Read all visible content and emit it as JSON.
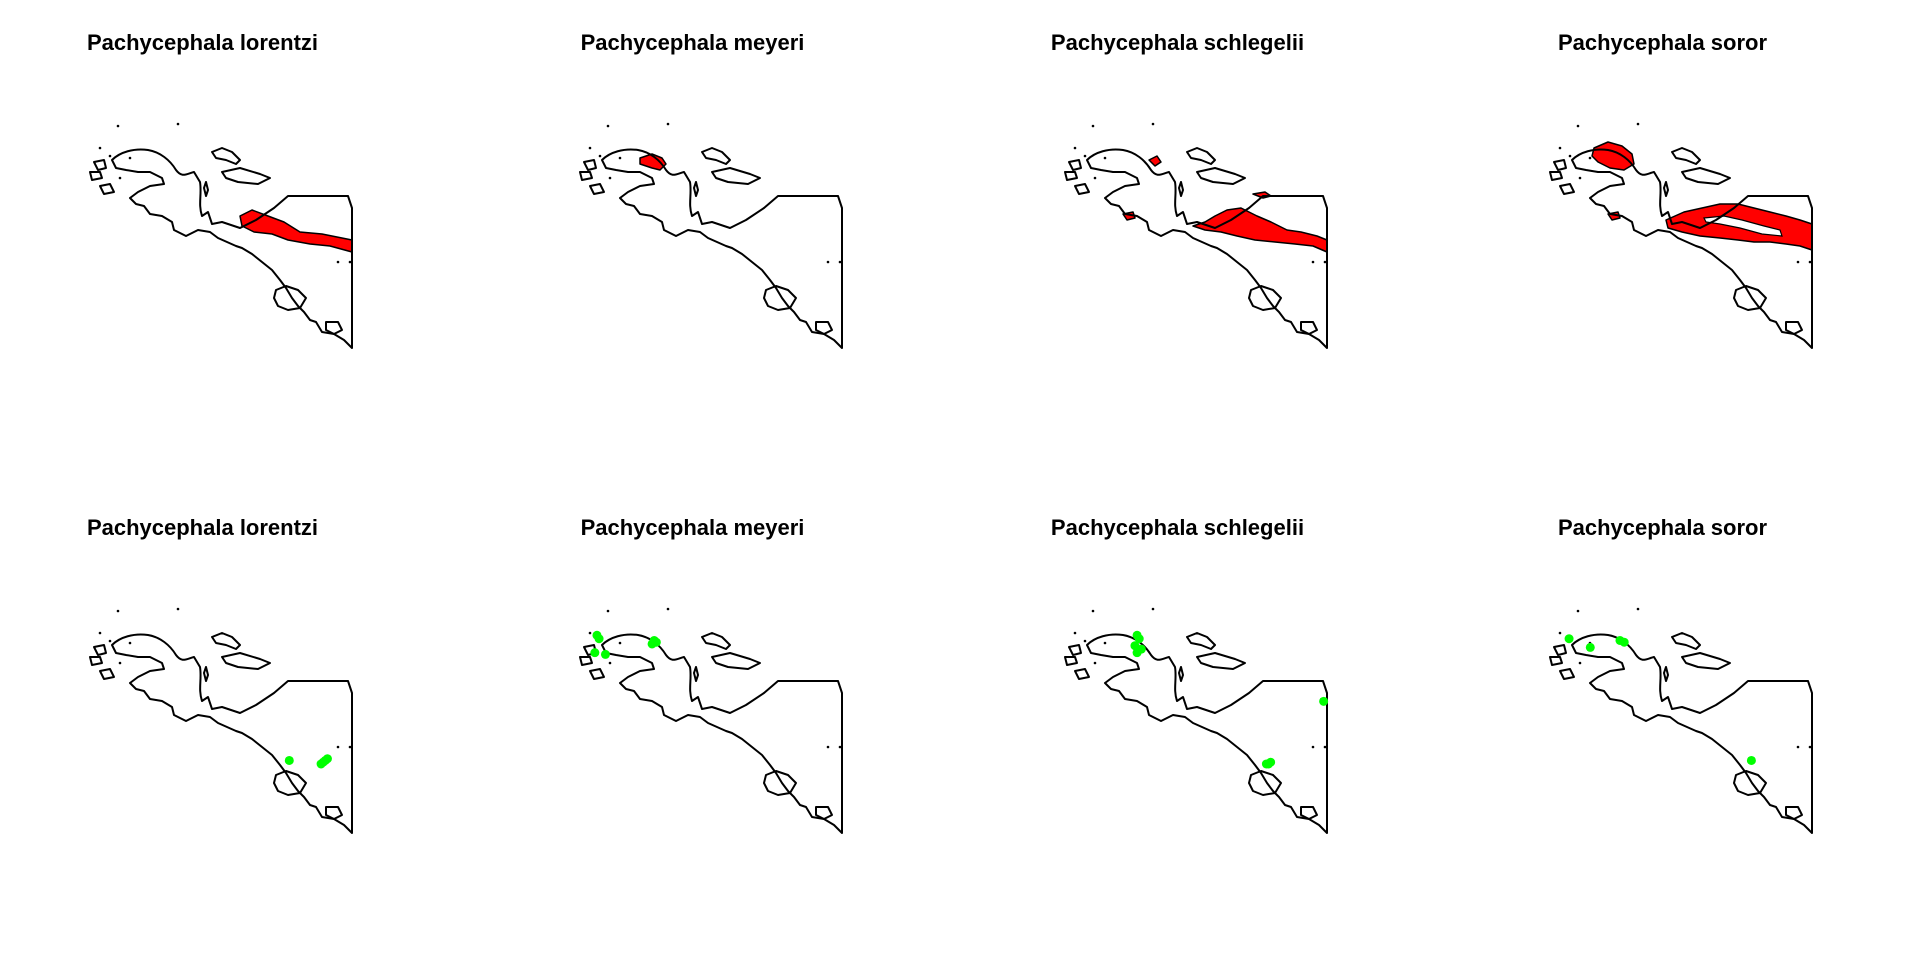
{
  "colors": {
    "range_fill": "#ff0000",
    "occurrence_fill": "#00ff00",
    "coastline": "#000000",
    "background": "#ffffff"
  },
  "rows": [
    {
      "kind": "range",
      "panels": [
        {
          "title": "Pachycephala lorentzi",
          "ranges": [
            "central-highlands-east"
          ]
        },
        {
          "title": "Pachycephala meyeri",
          "ranges": [
            "vogelkop-arfak"
          ]
        },
        {
          "title": "Pachycephala schlegelii",
          "ranges": [
            "vogelkop-small",
            "bomberai-west",
            "central-highlands-long",
            "sepik-north"
          ]
        },
        {
          "title": "Pachycephala soror",
          "ranges": [
            "vogelkop-large",
            "bomberai-west",
            "central-highlands-broad"
          ]
        }
      ]
    },
    {
      "kind": "occurrence",
      "panels": [
        {
          "title": "Pachycephala lorentzi",
          "points": [
            [
              139.8,
              -4.5
            ],
            [
              141.3,
              -4.6
            ],
            [
              141.5,
              -4.5
            ],
            [
              141.6,
              -4.45
            ],
            [
              141.4,
              -4.55
            ]
          ]
        },
        {
          "title": "Pachycephala meyeri",
          "points": [
            [
              131.2,
              -0.9
            ],
            [
              131.3,
              -1.0
            ],
            [
              131.1,
              -1.4
            ],
            [
              131.6,
              -1.45
            ],
            [
              133.9,
              -1.05
            ],
            [
              134.0,
              -1.1
            ],
            [
              133.8,
              -1.15
            ]
          ]
        },
        {
          "title": "Pachycephala schlegelii",
          "points": [
            [
              133.8,
              -0.9
            ],
            [
              133.9,
              -1.0
            ],
            [
              133.7,
              -1.2
            ],
            [
              133.8,
              -1.4
            ],
            [
              134.0,
              -1.3
            ],
            [
              139.9,
              -4.6
            ],
            [
              140.1,
              -4.55
            ],
            [
              140.0,
              -4.6
            ],
            [
              142.6,
              -2.8
            ]
          ]
        },
        {
          "title": "Pachycephala soror",
          "points": [
            [
              131.3,
              -1.0
            ],
            [
              132.3,
              -1.25
            ],
            [
              133.7,
              -1.05
            ],
            [
              133.9,
              -1.1
            ],
            [
              139.9,
              -4.5
            ]
          ]
        }
      ]
    }
  ]
}
